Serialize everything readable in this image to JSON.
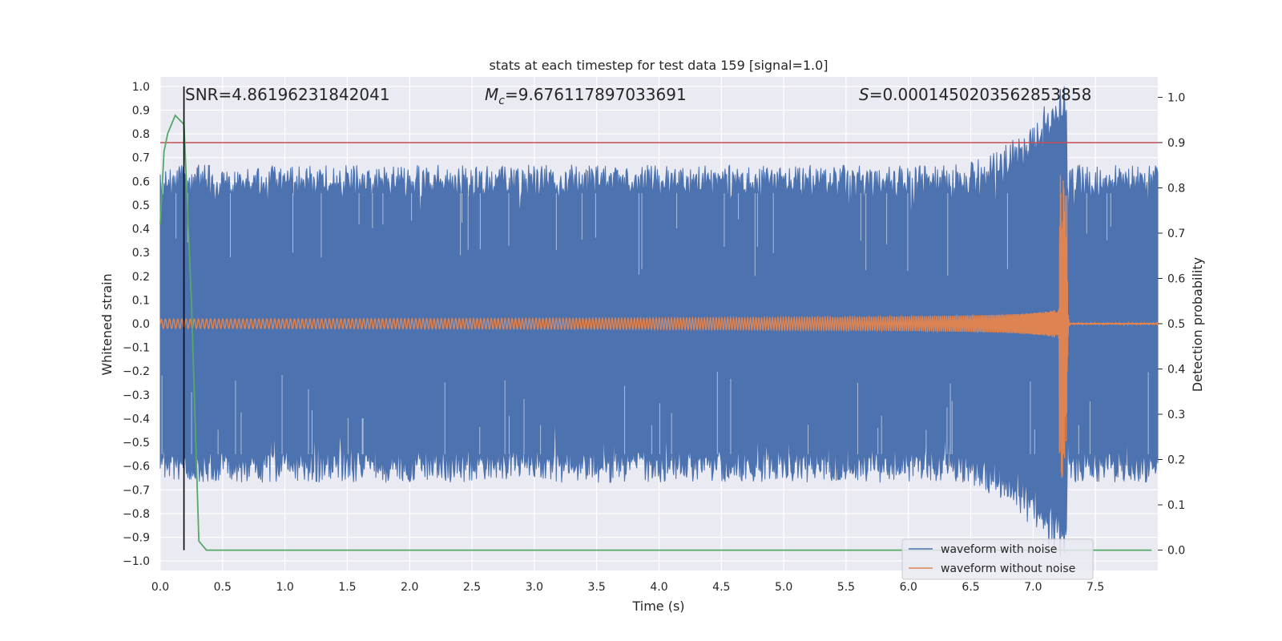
{
  "chart_data": {
    "type": "line",
    "title": "stats at each timestep for test data 159 [signal=1.0]",
    "xlabel": "Time (s)",
    "ylabel": "Whitened strain",
    "y2label": "Detection probability",
    "xlim": [
      0.0,
      8.0
    ],
    "ylim": [
      -1.04,
      1.04
    ],
    "y2lim": [
      -0.045,
      1.045
    ],
    "xticks": [
      "0.0",
      "0.5",
      "1.0",
      "1.5",
      "2.0",
      "2.5",
      "3.0",
      "3.5",
      "4.0",
      "4.5",
      "5.0",
      "5.5",
      "6.0",
      "6.5",
      "7.0",
      "7.5"
    ],
    "yticks": [
      "1.0",
      "0.9",
      "0.8",
      "0.7",
      "0.6",
      "0.5",
      "0.4",
      "0.3",
      "0.2",
      "0.1",
      "0.0",
      "−0.1",
      "−0.2",
      "−0.3",
      "−0.4",
      "−0.5",
      "−0.6",
      "−0.7",
      "−0.8",
      "−0.9",
      "−1.0"
    ],
    "y2ticks": [
      "1.0",
      "0.9",
      "0.8",
      "0.7",
      "0.6",
      "0.5",
      "0.4",
      "0.3",
      "0.2",
      "0.1",
      "0.0"
    ],
    "annotations": {
      "snr": "SNR=4.86196231842041",
      "mc_symbol": "M",
      "mc_sub": "c",
      "mc_value": "=9.676117897033691",
      "s_symbol": "S",
      "s_value": "=0.0001450203562853858"
    },
    "threshold": {
      "y2": 0.9,
      "color": "#c44e52"
    },
    "marker_time": 0.19,
    "series": [
      {
        "name": "waveform with noise",
        "color": "#4c72b0",
        "noise_upper_level": 0.6,
        "noise_lower_level": -0.6,
        "merger_time": 7.27
      },
      {
        "name": "waveform without noise",
        "color": "#dd8452",
        "amplitude_start": 0.02,
        "amplitude_peak": 0.65,
        "merger_time": 7.27,
        "end_time": 8.0
      },
      {
        "name": "Detection probability",
        "color": "#55a868",
        "x": [
          0.0,
          0.03,
          0.06,
          0.12,
          0.19,
          0.25,
          0.31,
          0.37,
          7.95
        ],
        "y": [
          0.72,
          0.88,
          0.92,
          0.96,
          0.94,
          0.55,
          0.02,
          0.0,
          0.0
        ]
      }
    ],
    "legend": {
      "position": "lower-right",
      "entries": [
        "waveform with noise",
        "waveform without noise"
      ]
    }
  }
}
